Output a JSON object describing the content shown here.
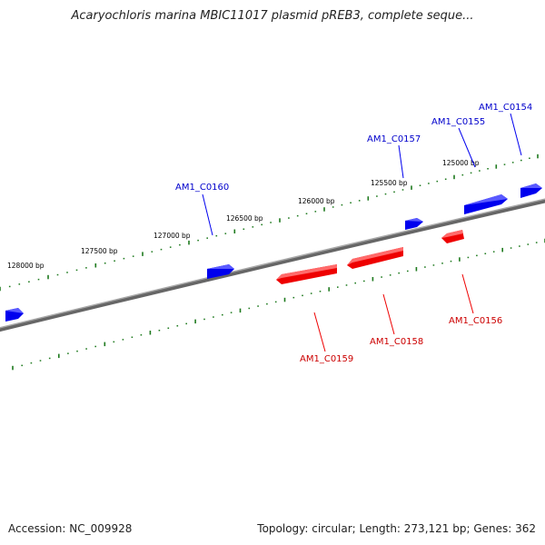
{
  "title": "Acaryochloris marina MBIC11017 plasmid pREB3, complete seque...",
  "footer": {
    "accession": "Accession: NC_009928",
    "info": "Topology: circular; Length: 273,121 bp; Genes: 362"
  },
  "colors": {
    "forward": "#0000ee",
    "forward_light": "#5a5aff",
    "reverse": "#ee0000",
    "reverse_light": "#ff6a6a",
    "ticks": "#1e7a1e",
    "backbone": "#888888"
  },
  "scale": {
    "labels": [
      "128000 bp",
      "127500 bp",
      "127000 bp",
      "126500 bp",
      "126000 bp",
      "125500 bp",
      "125000 bp"
    ]
  },
  "forward_genes": [
    {
      "id": "AM1_C0160",
      "label": "AM1_C0160"
    },
    {
      "id": "AM1_C0157",
      "label": "AM1_C0157"
    },
    {
      "id": "AM1_C0155",
      "label": "AM1_C0155"
    },
    {
      "id": "AM1_C0154",
      "label": "AM1_C0154"
    }
  ],
  "reverse_genes": [
    {
      "id": "AM1_C0159",
      "label": "AM1_C0159"
    },
    {
      "id": "AM1_C0158",
      "label": "AM1_C0158"
    },
    {
      "id": "AM1_C0156",
      "label": "AM1_C0156"
    }
  ]
}
